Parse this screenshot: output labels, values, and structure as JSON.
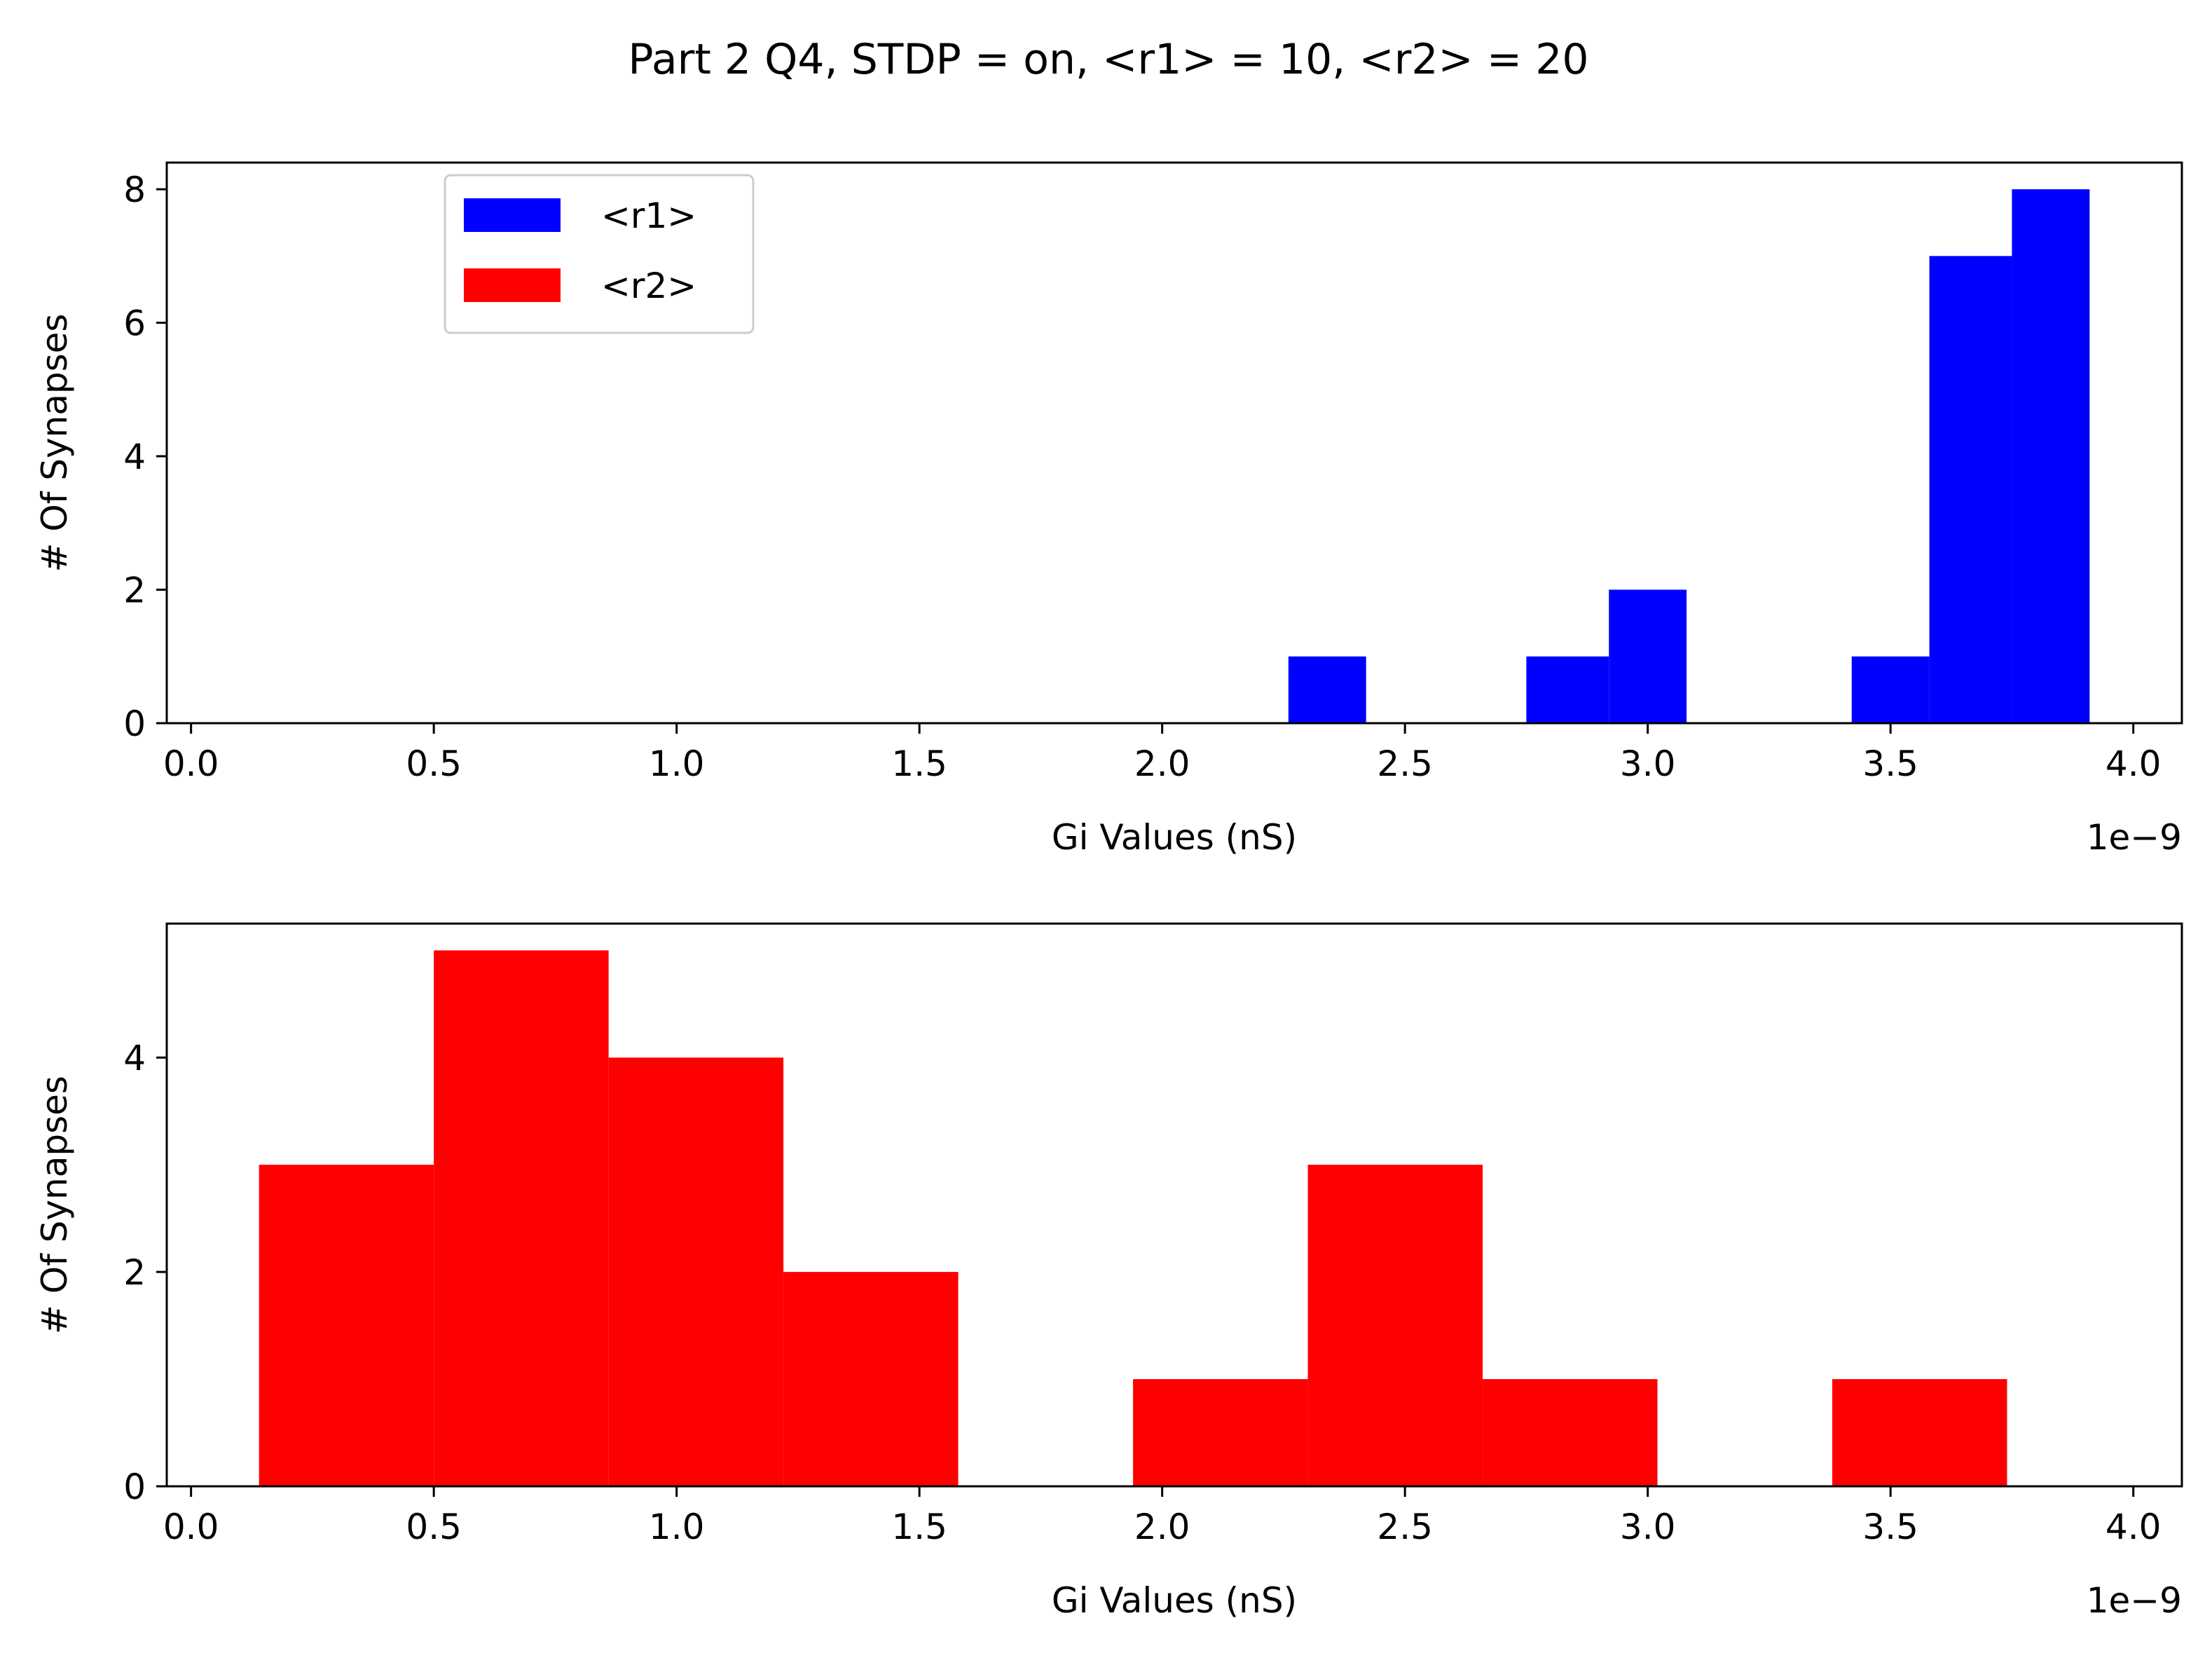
{
  "figure_title": "Part 2 Q4, STDP = on, <r1> = 10, <r2> = 20",
  "chart_data": [
    {
      "type": "bar",
      "subtype": "histogram",
      "xlabel": "Gi Values (nS)",
      "ylabel": "# Of Synapses",
      "x_offset_label": "1e−9",
      "xlim": [
        -0.05,
        4.1
      ],
      "ylim": [
        0,
        8.4
      ],
      "xticks": [
        "0.0",
        "0.5",
        "1.0",
        "1.5",
        "2.0",
        "2.5",
        "3.0",
        "3.5",
        "4.0"
      ],
      "yticks": [
        "0",
        "2",
        "4",
        "6",
        "8"
      ],
      "legend": {
        "placement": "upper-left",
        "entries": [
          {
            "label": "<r1>",
            "color": "#0000ff"
          },
          {
            "label": "<r2>",
            "color": "#ff0000"
          }
        ]
      },
      "series": [
        {
          "name": "<r1>",
          "color": "#0000ff",
          "bins": [
            {
              "x0": 2.26,
              "x1": 2.42,
              "count": 1
            },
            {
              "x0": 2.75,
              "x1": 2.92,
              "count": 1
            },
            {
              "x0": 2.92,
              "x1": 3.08,
              "count": 2
            },
            {
              "x0": 3.42,
              "x1": 3.58,
              "count": 1
            },
            {
              "x0": 3.58,
              "x1": 3.75,
              "count": 7
            },
            {
              "x0": 3.75,
              "x1": 3.91,
              "count": 8
            }
          ]
        }
      ]
    },
    {
      "type": "bar",
      "subtype": "histogram",
      "xlabel": "Gi Values (nS)",
      "ylabel": "# Of Synapses",
      "x_offset_label": "1e−9",
      "xlim": [
        -0.05,
        4.1
      ],
      "ylim": [
        0,
        5.25
      ],
      "xticks": [
        "0.0",
        "0.5",
        "1.0",
        "1.5",
        "2.0",
        "2.5",
        "3.0",
        "3.5",
        "4.0"
      ],
      "yticks": [
        "0",
        "2",
        "4"
      ],
      "series": [
        {
          "name": "<r2>",
          "color": "#ff0000",
          "bins": [
            {
              "x0": 0.14,
              "x1": 0.5,
              "count": 3
            },
            {
              "x0": 0.5,
              "x1": 0.86,
              "count": 5
            },
            {
              "x0": 0.86,
              "x1": 1.22,
              "count": 4
            },
            {
              "x0": 1.22,
              "x1": 1.58,
              "count": 2
            },
            {
              "x0": 1.58,
              "x1": 1.94,
              "count": 0
            },
            {
              "x0": 1.94,
              "x1": 2.3,
              "count": 1
            },
            {
              "x0": 2.3,
              "x1": 2.66,
              "count": 3
            },
            {
              "x0": 2.66,
              "x1": 3.02,
              "count": 1
            },
            {
              "x0": 3.02,
              "x1": 3.38,
              "count": 0
            },
            {
              "x0": 3.38,
              "x1": 3.74,
              "count": 1
            }
          ]
        }
      ]
    }
  ]
}
